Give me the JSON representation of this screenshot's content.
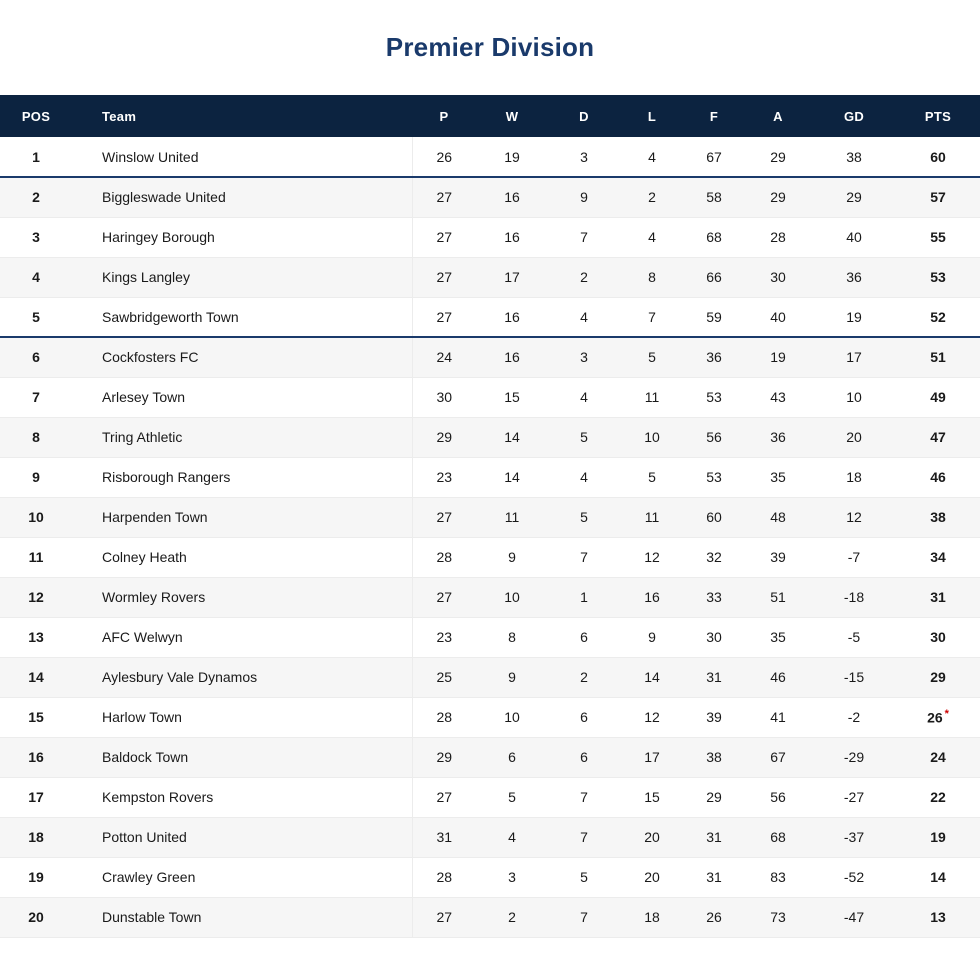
{
  "title": "Premier Division",
  "colors": {
    "header_bg": "#0c2340",
    "header_text": "#ffffff",
    "title_text": "#1a3a6b",
    "divider": "#1a3a6b",
    "alt_row_bg": "#f6f6f6",
    "row_border": "#ececec",
    "deduction_note_red": "#cc0000"
  },
  "chart_data": {
    "type": "table",
    "title": "Premier Division",
    "columns": [
      "POS",
      "Team",
      "P",
      "W",
      "D",
      "L",
      "F",
      "A",
      "GD",
      "PTS"
    ],
    "dividers_after_pos": [
      1,
      5
    ],
    "rows": [
      {
        "pos": "1",
        "team": "Winslow United",
        "p": "26",
        "w": "19",
        "d": "3",
        "l": "4",
        "f": "67",
        "a": "29",
        "gd": "38",
        "pts": "60",
        "pts_note": ""
      },
      {
        "pos": "2",
        "team": "Biggleswade United",
        "p": "27",
        "w": "16",
        "d": "9",
        "l": "2",
        "f": "58",
        "a": "29",
        "gd": "29",
        "pts": "57",
        "pts_note": ""
      },
      {
        "pos": "3",
        "team": "Haringey Borough",
        "p": "27",
        "w": "16",
        "d": "7",
        "l": "4",
        "f": "68",
        "a": "28",
        "gd": "40",
        "pts": "55",
        "pts_note": ""
      },
      {
        "pos": "4",
        "team": "Kings Langley",
        "p": "27",
        "w": "17",
        "d": "2",
        "l": "8",
        "f": "66",
        "a": "30",
        "gd": "36",
        "pts": "53",
        "pts_note": ""
      },
      {
        "pos": "5",
        "team": "Sawbridgeworth Town",
        "p": "27",
        "w": "16",
        "d": "4",
        "l": "7",
        "f": "59",
        "a": "40",
        "gd": "19",
        "pts": "52",
        "pts_note": ""
      },
      {
        "pos": "6",
        "team": "Cockfosters FC",
        "p": "24",
        "w": "16",
        "d": "3",
        "l": "5",
        "f": "36",
        "a": "19",
        "gd": "17",
        "pts": "51",
        "pts_note": ""
      },
      {
        "pos": "7",
        "team": "Arlesey Town",
        "p": "30",
        "w": "15",
        "d": "4",
        "l": "11",
        "f": "53",
        "a": "43",
        "gd": "10",
        "pts": "49",
        "pts_note": ""
      },
      {
        "pos": "8",
        "team": "Tring Athletic",
        "p": "29",
        "w": "14",
        "d": "5",
        "l": "10",
        "f": "56",
        "a": "36",
        "gd": "20",
        "pts": "47",
        "pts_note": ""
      },
      {
        "pos": "9",
        "team": "Risborough Rangers",
        "p": "23",
        "w": "14",
        "d": "4",
        "l": "5",
        "f": "53",
        "a": "35",
        "gd": "18",
        "pts": "46",
        "pts_note": ""
      },
      {
        "pos": "10",
        "team": "Harpenden Town",
        "p": "27",
        "w": "11",
        "d": "5",
        "l": "11",
        "f": "60",
        "a": "48",
        "gd": "12",
        "pts": "38",
        "pts_note": ""
      },
      {
        "pos": "11",
        "team": "Colney Heath",
        "p": "28",
        "w": "9",
        "d": "7",
        "l": "12",
        "f": "32",
        "a": "39",
        "gd": "-7",
        "pts": "34",
        "pts_note": ""
      },
      {
        "pos": "12",
        "team": "Wormley Rovers",
        "p": "27",
        "w": "10",
        "d": "1",
        "l": "16",
        "f": "33",
        "a": "51",
        "gd": "-18",
        "pts": "31",
        "pts_note": ""
      },
      {
        "pos": "13",
        "team": "AFC Welwyn",
        "p": "23",
        "w": "8",
        "d": "6",
        "l": "9",
        "f": "30",
        "a": "35",
        "gd": "-5",
        "pts": "30",
        "pts_note": ""
      },
      {
        "pos": "14",
        "team": "Aylesbury Vale Dynamos",
        "p": "25",
        "w": "9",
        "d": "2",
        "l": "14",
        "f": "31",
        "a": "46",
        "gd": "-15",
        "pts": "29",
        "pts_note": ""
      },
      {
        "pos": "15",
        "team": "Harlow Town",
        "p": "28",
        "w": "10",
        "d": "6",
        "l": "12",
        "f": "39",
        "a": "41",
        "gd": "-2",
        "pts": "26",
        "pts_note": "*"
      },
      {
        "pos": "16",
        "team": "Baldock Town",
        "p": "29",
        "w": "6",
        "d": "6",
        "l": "17",
        "f": "38",
        "a": "67",
        "gd": "-29",
        "pts": "24",
        "pts_note": ""
      },
      {
        "pos": "17",
        "team": "Kempston Rovers",
        "p": "27",
        "w": "5",
        "d": "7",
        "l": "15",
        "f": "29",
        "a": "56",
        "gd": "-27",
        "pts": "22",
        "pts_note": ""
      },
      {
        "pos": "18",
        "team": "Potton United",
        "p": "31",
        "w": "4",
        "d": "7",
        "l": "20",
        "f": "31",
        "a": "68",
        "gd": "-37",
        "pts": "19",
        "pts_note": ""
      },
      {
        "pos": "19",
        "team": "Crawley Green",
        "p": "28",
        "w": "3",
        "d": "5",
        "l": "20",
        "f": "31",
        "a": "83",
        "gd": "-52",
        "pts": "14",
        "pts_note": ""
      },
      {
        "pos": "20",
        "team": "Dunstable Town",
        "p": "27",
        "w": "2",
        "d": "7",
        "l": "18",
        "f": "26",
        "a": "73",
        "gd": "-47",
        "pts": "13",
        "pts_note": ""
      }
    ]
  }
}
